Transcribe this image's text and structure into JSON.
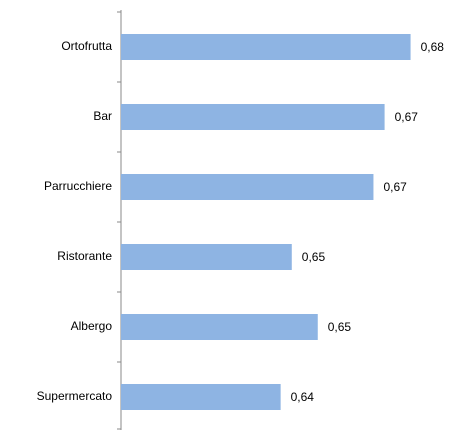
{
  "chart_data": {
    "type": "hbar",
    "categories": [
      "Ortofrutta",
      "Bar",
      "Parrucchiere",
      "Ristorante",
      "Albergo",
      "Supermercato"
    ],
    "values": [
      0.678,
      0.671,
      0.668,
      0.646,
      0.653,
      0.643
    ],
    "value_labels": [
      "0,68",
      "0,67",
      "0,67",
      "0,65",
      "0,65",
      "0,64"
    ],
    "color": "#8eb4e3",
    "xlim": [
      0.6,
      0.68
    ]
  }
}
